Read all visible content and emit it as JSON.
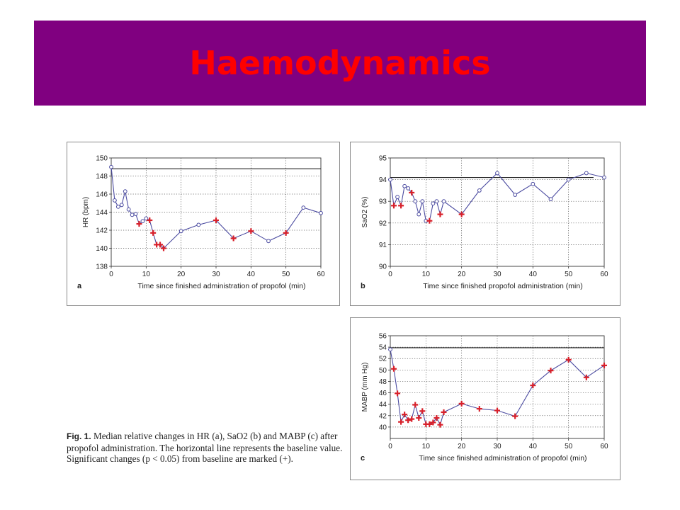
{
  "title": "Haemodynamics",
  "caption": {
    "figure_label": "Fig. 1.",
    "text": "Median relative changes in HR (a), SaO2 (b) and MABP (c) after propofol administration. The horizontal line represents the baseline value. Significant changes (p < 0.05) from baseline are marked (+)."
  },
  "colors": {
    "line": "#4b4ba0",
    "marker": "#d8202a",
    "banner": "#800080",
    "title": "#ff0000"
  },
  "chart_data": [
    {
      "type": "line",
      "panel_label": "a",
      "xlabel": "Time since finished administration of propofol (min)",
      "ylabel": "HR (bpm)",
      "xlim": [
        0,
        60
      ],
      "ylim": [
        138,
        150
      ],
      "xticks": [
        0,
        10,
        20,
        30,
        40,
        50,
        60
      ],
      "yticks": [
        138,
        140,
        142,
        144,
        146,
        148,
        150
      ],
      "baseline": 148.8,
      "grid": true,
      "x": [
        0,
        1,
        2,
        3,
        4,
        5,
        6,
        7,
        8,
        9,
        10,
        11,
        12,
        13,
        14,
        15,
        20,
        25,
        30,
        35,
        40,
        45,
        50,
        55,
        60
      ],
      "y": [
        149.0,
        145.3,
        144.6,
        144.8,
        146.3,
        144.3,
        143.7,
        143.8,
        142.7,
        143.0,
        143.3,
        143.1,
        141.7,
        140.4,
        140.4,
        140.0,
        141.9,
        142.6,
        143.1,
        141.1,
        141.9,
        140.8,
        141.7,
        144.5,
        143.9
      ],
      "significant": [
        false,
        false,
        false,
        false,
        false,
        false,
        false,
        false,
        true,
        false,
        false,
        true,
        true,
        true,
        true,
        true,
        false,
        false,
        true,
        true,
        true,
        false,
        true,
        false,
        false
      ]
    },
    {
      "type": "line",
      "panel_label": "b",
      "xlabel": "Time since finished propofol administration (min)",
      "ylabel": "SaO2 (%)",
      "xlim": [
        0,
        60
      ],
      "ylim": [
        90,
        95
      ],
      "xticks": [
        0,
        10,
        20,
        30,
        40,
        50,
        60
      ],
      "yticks": [
        90,
        91,
        92,
        93,
        94,
        95
      ],
      "baseline": 94.1,
      "grid": true,
      "x": [
        0,
        1,
        2,
        3,
        4,
        5,
        6,
        7,
        8,
        9,
        10,
        11,
        12,
        13,
        14,
        15,
        20,
        25,
        30,
        35,
        40,
        45,
        50,
        55,
        60
      ],
      "y": [
        94.0,
        92.8,
        93.2,
        92.8,
        93.7,
        93.6,
        93.4,
        93.0,
        92.4,
        93.0,
        92.1,
        92.1,
        92.9,
        93.0,
        92.4,
        93.0,
        92.4,
        93.5,
        94.3,
        93.3,
        93.8,
        93.1,
        94.0,
        94.3,
        94.1
      ],
      "significant": [
        false,
        true,
        false,
        true,
        false,
        false,
        true,
        false,
        false,
        false,
        false,
        true,
        false,
        false,
        true,
        false,
        true,
        false,
        false,
        false,
        false,
        false,
        false,
        false,
        false
      ]
    },
    {
      "type": "line",
      "panel_label": "c",
      "xlabel": "Time since finished administration of propofol (min)",
      "ylabel": "MABP (mm Hg)",
      "xlim": [
        0,
        60
      ],
      "ylim": [
        38,
        56
      ],
      "xticks": [
        0,
        10,
        20,
        30,
        40,
        50,
        60
      ],
      "yticks": [
        40,
        42,
        44,
        46,
        48,
        50,
        52,
        54,
        56
      ],
      "baseline": 53.9,
      "grid": true,
      "x": [
        0,
        1,
        2,
        3,
        4,
        5,
        6,
        7,
        8,
        9,
        10,
        11,
        12,
        13,
        14,
        15,
        20,
        25,
        30,
        35,
        40,
        45,
        50,
        55,
        60
      ],
      "y": [
        53.6,
        50.2,
        45.9,
        40.9,
        42.2,
        41.2,
        41.4,
        43.9,
        41.6,
        42.8,
        40.5,
        40.5,
        40.8,
        41.6,
        40.4,
        42.6,
        44.1,
        43.2,
        42.9,
        41.9,
        47.3,
        49.9,
        51.8,
        48.7,
        50.8
      ],
      "significant": [
        false,
        true,
        true,
        true,
        true,
        true,
        true,
        true,
        true,
        true,
        true,
        true,
        true,
        true,
        true,
        true,
        true,
        true,
        true,
        true,
        true,
        true,
        true,
        true,
        true
      ]
    }
  ]
}
